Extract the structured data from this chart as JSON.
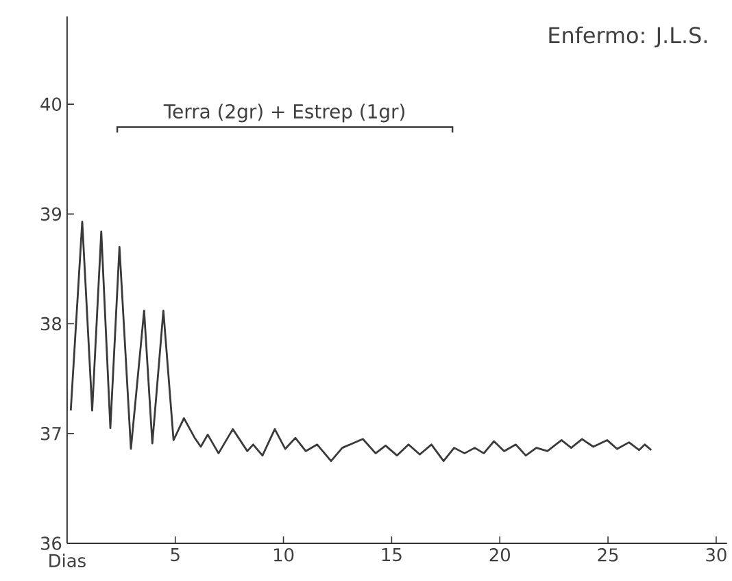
{
  "chart_data": {
    "type": "line",
    "title": "Enfermo: J.L.S.",
    "xlabel": "Dias",
    "x": [
      0.17,
      0.7,
      1.16,
      1.58,
      2.0,
      2.42,
      2.95,
      3.56,
      3.94,
      4.45,
      4.92,
      5.4,
      5.9,
      6.18,
      6.5,
      7.0,
      7.66,
      8.33,
      8.6,
      9.03,
      9.6,
      10.08,
      10.55,
      11.03,
      11.56,
      12.2,
      12.72,
      13.67,
      14.26,
      14.72,
      15.25,
      15.78,
      16.3,
      16.84,
      17.4,
      17.89,
      18.37,
      18.84,
      19.26,
      19.73,
      20.2,
      20.74,
      21.2,
      21.69,
      22.2,
      22.85,
      23.3,
      23.8,
      24.32,
      24.96,
      25.42,
      25.97,
      26.44,
      26.7,
      27.0
    ],
    "series": [
      {
        "color": "#3a3a3a",
        "values": [
          37.21,
          38.93,
          37.21,
          38.84,
          37.05,
          38.7,
          36.86,
          38.12,
          36.91,
          38.12,
          36.94,
          37.14,
          36.96,
          36.88,
          36.99,
          36.82,
          37.04,
          36.84,
          36.9,
          36.8,
          37.04,
          36.86,
          36.96,
          36.84,
          36.9,
          36.75,
          36.87,
          36.95,
          36.82,
          36.89,
          36.8,
          36.9,
          36.81,
          36.9,
          36.75,
          36.87,
          36.82,
          36.87,
          36.82,
          36.93,
          36.84,
          36.9,
          36.8,
          36.87,
          36.84,
          36.94,
          36.87,
          36.95,
          36.88,
          36.94,
          36.86,
          36.92,
          36.85,
          36.9,
          36.85
        ]
      }
    ],
    "xlim": [
      0,
      30.5
    ],
    "ylim": [
      36,
      40.8
    ],
    "xticks": [
      5,
      10,
      15,
      20,
      25,
      30
    ],
    "yticks": [
      36,
      37,
      38,
      39,
      40
    ],
    "annotations": [
      "Terra (2gr) + Estrep (1gr)"
    ],
    "grid": false,
    "marker": "none",
    "line_style": "solid"
  }
}
